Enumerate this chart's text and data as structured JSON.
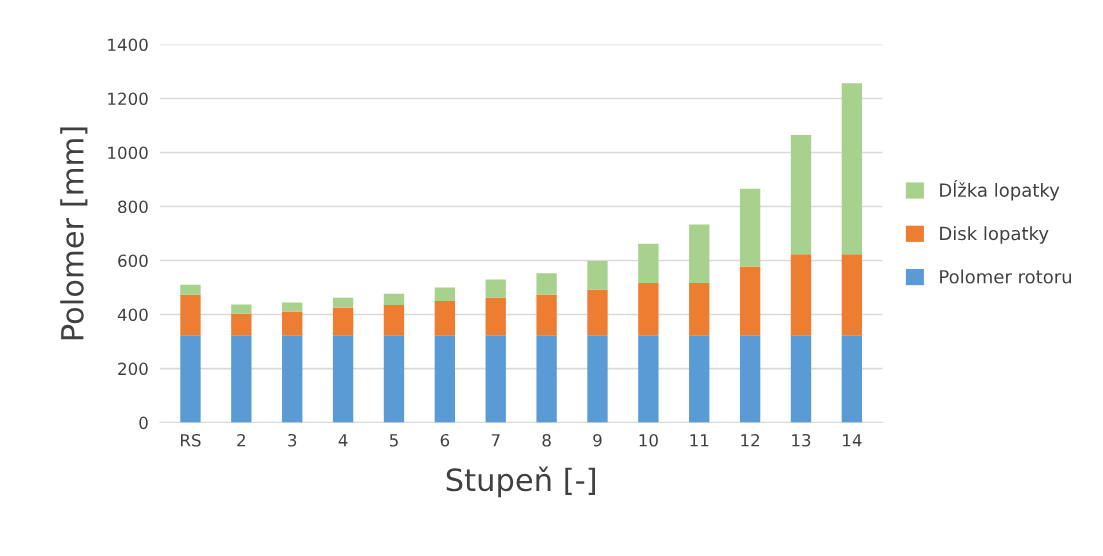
{
  "chart_data": {
    "type": "bar",
    "stacked": true,
    "xlabel": "Stupeň [-]",
    "ylabel": "Polomer [mm]",
    "categories": [
      "RS",
      "2",
      "3",
      "4",
      "5",
      "6",
      "7",
      "8",
      "9",
      "10",
      "11",
      "12",
      "13",
      "14"
    ],
    "series": [
      {
        "name": "Polomer rotoru",
        "color": "#5b9bd5",
        "values": [
          323,
          323,
          323,
          323,
          323,
          323,
          323,
          323,
          323,
          323,
          323,
          323,
          323,
          323
        ]
      },
      {
        "name": "Disk lopatky",
        "color": "#ed7d31",
        "values": [
          150,
          80,
          88,
          102,
          112,
          127,
          140,
          151,
          170,
          194,
          194,
          255,
          300,
          300
        ]
      },
      {
        "name": "Dĺžka lopatky",
        "color": "#a9d18e",
        "values": [
          37,
          34,
          34,
          37,
          42,
          50,
          67,
          79,
          105,
          145,
          216,
          288,
          442,
          633
        ]
      }
    ],
    "ylim": [
      0,
      1400
    ],
    "yticks": [
      0,
      200,
      400,
      600,
      800,
      1000,
      1200,
      1400
    ],
    "grid": "y",
    "legend": "right"
  }
}
